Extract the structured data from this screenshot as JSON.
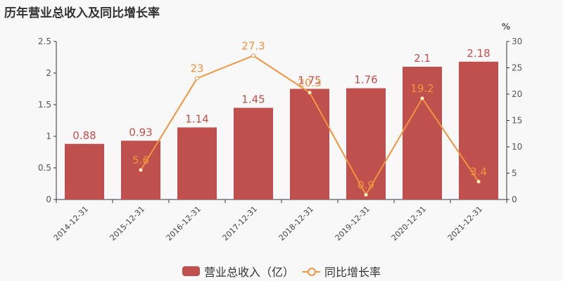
{
  "title": "历年营业总收入及同比增长率",
  "legend": {
    "bar_label": "营业总收入（亿）",
    "line_label": "同比增长率"
  },
  "right_axis_unit": "%",
  "colors": {
    "bar": "#c0504d",
    "line": "#f0953f"
  },
  "chart_data": {
    "type": "bar+line",
    "title": "历年营业总收入及同比增长率",
    "categories": [
      "2014-12-31",
      "2015-12-31",
      "2016-12-31",
      "2017-12-31",
      "2018-12-31",
      "2019-12-31",
      "2020-12-31",
      "2021-12-31"
    ],
    "series": [
      {
        "name": "营业总收入（亿）",
        "type": "bar",
        "axis": "left",
        "values": [
          0.88,
          0.93,
          1.14,
          1.45,
          1.75,
          1.76,
          2.1,
          2.18
        ]
      },
      {
        "name": "同比增长率",
        "type": "line",
        "axis": "right",
        "values": [
          null,
          5.6,
          23,
          27.3,
          20.3,
          0.9,
          19.2,
          3.4
        ]
      }
    ],
    "left_axis": {
      "ylim": [
        0,
        2.5
      ],
      "ticks": [
        0,
        0.5,
        1,
        1.5,
        2,
        2.5
      ]
    },
    "right_axis": {
      "ylim": [
        0,
        30
      ],
      "ticks": [
        0,
        5,
        10,
        15,
        20,
        25,
        30
      ],
      "label": "%"
    },
    "legend_position": "bottom"
  }
}
